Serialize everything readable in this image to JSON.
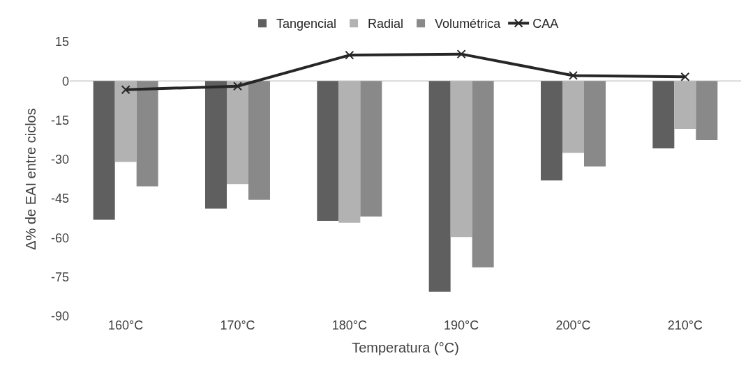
{
  "chart_data": {
    "type": "bar",
    "xlabel": "Temperatura (°C)",
    "ylabel": "Δ% de EAI entre ciclos",
    "categories": [
      "160°C",
      "170°C",
      "180°C",
      "190°C",
      "200°C",
      "210°C"
    ],
    "series": [
      {
        "name": "Tangencial",
        "color": "#5f5f5f",
        "values": [
          -53.1,
          -48.8,
          -53.5,
          -80.6,
          -38.0,
          -25.8
        ]
      },
      {
        "name": "Radial",
        "color": "#b2b2b2",
        "values": [
          -31.0,
          -39.4,
          -54.2,
          -59.7,
          -27.5,
          -18.3
        ]
      },
      {
        "name": "Volumétrica",
        "color": "#898989",
        "values": [
          -40.3,
          -45.4,
          -51.8,
          -71.3,
          -32.7,
          -22.6
        ]
      },
      {
        "name": "CAA",
        "type": "line",
        "color": "#262626",
        "marker": "cross",
        "values": [
          -3.3,
          -2.0,
          9.9,
          10.3,
          2.1,
          1.6
        ]
      }
    ],
    "ylim": [
      -90,
      15
    ],
    "yticks": [
      -90,
      -75,
      -60,
      -45,
      -30,
      -15,
      0,
      15
    ],
    "ref_lines": [
      {
        "axis": "y",
        "value": 0,
        "color": "#d9d9d9"
      }
    ],
    "legend": "top"
  }
}
